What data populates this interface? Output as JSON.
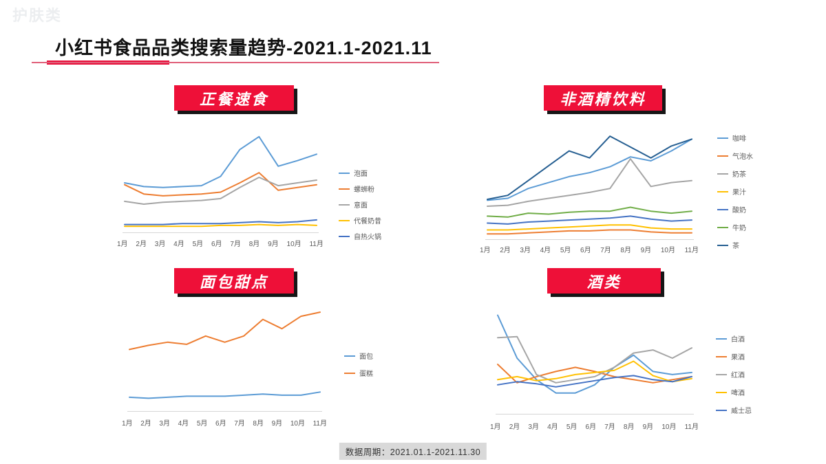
{
  "page": {
    "watermark": "护肤类",
    "title": "小红书食品品类搜索量趋势-2021.1-2021.11",
    "footer": "数据周期：2021.01.1-2021.11.30"
  },
  "colors": {
    "badge_red": "#ee1038",
    "underline_red": "#e8113c"
  },
  "chart_data": [
    {
      "type": "line",
      "title": "正餐速食",
      "categories": [
        "1月",
        "2月",
        "3月",
        "4月",
        "5月",
        "6月",
        "7月",
        "8月",
        "9月",
        "10月",
        "11月"
      ],
      "ylim": [
        0,
        110
      ],
      "legend_position": "right",
      "grid": false,
      "series": [
        {
          "name": "泡面",
          "color": "#5B9BD5",
          "values": [
            52,
            48,
            47,
            48,
            49,
            59,
            88,
            102,
            70,
            76,
            83
          ]
        },
        {
          "name": "螺蛳粉",
          "color": "#ED7D31",
          "values": [
            50,
            40,
            38,
            39,
            40,
            42,
            52,
            63,
            44,
            47,
            50
          ]
        },
        {
          "name": "意面",
          "color": "#A5A5A5",
          "values": [
            32,
            29,
            31,
            32,
            33,
            35,
            47,
            58,
            49,
            52,
            55
          ]
        },
        {
          "name": "代餐奶昔",
          "color": "#FFC000",
          "values": [
            5,
            5,
            5,
            5,
            5,
            6,
            6,
            7,
            6,
            7,
            6
          ]
        },
        {
          "name": "自热火锅",
          "color": "#4472C4",
          "values": [
            7,
            7,
            7,
            8,
            8,
            8,
            9,
            10,
            9,
            10,
            12
          ]
        }
      ]
    },
    {
      "type": "line",
      "title": "非酒精饮料",
      "categories": [
        "1月",
        "2月",
        "3月",
        "4月",
        "5月",
        "6月",
        "7月",
        "8月",
        "9月",
        "10月",
        "11月"
      ],
      "ylim": [
        0,
        110
      ],
      "legend_position": "right",
      "grid": false,
      "series": [
        {
          "name": "咖啡",
          "color": "#5B9BD5",
          "values": [
            38,
            40,
            50,
            56,
            62,
            66,
            72,
            82,
            78,
            88,
            100
          ]
        },
        {
          "name": "气泡水",
          "color": "#ED7D31",
          "values": [
            4,
            4,
            5,
            6,
            7,
            7,
            8,
            8,
            6,
            5,
            5
          ]
        },
        {
          "name": "奶茶",
          "color": "#A5A5A5",
          "values": [
            32,
            33,
            37,
            40,
            43,
            46,
            50,
            80,
            52,
            56,
            58
          ]
        },
        {
          "name": "果汁",
          "color": "#FFC000",
          "values": [
            8,
            8,
            9,
            10,
            11,
            12,
            13,
            13,
            10,
            9,
            9
          ]
        },
        {
          "name": "酸奶",
          "color": "#4472C4",
          "values": [
            15,
            14,
            16,
            17,
            18,
            19,
            20,
            22,
            19,
            17,
            18
          ]
        },
        {
          "name": "牛奶",
          "color": "#70AD47",
          "values": [
            22,
            21,
            25,
            24,
            26,
            27,
            27,
            31,
            27,
            25,
            27
          ]
        },
        {
          "name": "茶",
          "color": "#255E91",
          "values": [
            39,
            43,
            58,
            73,
            88,
            81,
            103,
            92,
            81,
            93,
            100
          ]
        }
      ]
    },
    {
      "type": "line",
      "title": "面包甜点",
      "categories": [
        "1月",
        "2月",
        "3月",
        "4月",
        "5月",
        "6月",
        "7月",
        "8月",
        "9月",
        "10月",
        "11月"
      ],
      "ylim": [
        0,
        100
      ],
      "legend_position": "right",
      "grid": false,
      "series": [
        {
          "name": "面包",
          "color": "#5B9BD5",
          "values": [
            12,
            11,
            12,
            13,
            13,
            13,
            14,
            15,
            14,
            14,
            17
          ]
        },
        {
          "name": "蛋糕",
          "color": "#ED7D31",
          "values": [
            58,
            62,
            65,
            63,
            71,
            65,
            71,
            87,
            78,
            90,
            94
          ]
        }
      ]
    },
    {
      "type": "line",
      "title": "酒类",
      "categories": [
        "1月",
        "2月",
        "3月",
        "4月",
        "5月",
        "6月",
        "7月",
        "8月",
        "9月",
        "10月",
        "11月"
      ],
      "ylim": [
        0,
        100
      ],
      "legend_position": "right",
      "grid": false,
      "series": [
        {
          "name": "白酒",
          "color": "#5B9BD5",
          "values": [
            95,
            53,
            32,
            19,
            19,
            27,
            44,
            56,
            40,
            37,
            39
          ]
        },
        {
          "name": "果酒",
          "color": "#ED7D31",
          "values": [
            47,
            29,
            35,
            40,
            44,
            40,
            35,
            32,
            29,
            32,
            35
          ]
        },
        {
          "name": "红酒",
          "color": "#A5A5A5",
          "values": [
            73,
            74,
            37,
            29,
            32,
            35,
            44,
            58,
            61,
            53,
            63
          ]
        },
        {
          "name": "啤酒",
          "color": "#FFC000",
          "values": [
            32,
            35,
            31,
            33,
            37,
            39,
            41,
            50,
            36,
            30,
            33
          ]
        },
        {
          "name": "威士忌",
          "color": "#4472C4",
          "values": [
            27,
            30,
            28,
            25,
            28,
            31,
            34,
            36,
            32,
            30,
            35
          ]
        }
      ]
    }
  ]
}
